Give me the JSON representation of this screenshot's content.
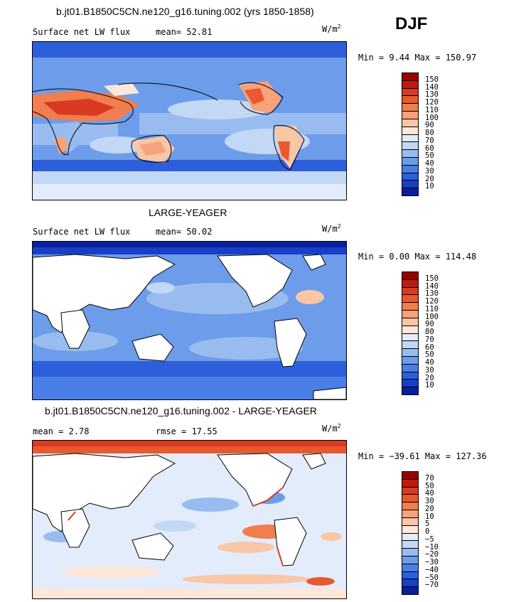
{
  "season": "DJF",
  "panels": [
    {
      "title": "b.jt01.B1850C5CN.ne120_g16.tuning.002 (yrs 1850-1858)",
      "left_label": "Surface net LW flux",
      "center_label": "mean=  52.81",
      "units": "W/m",
      "units_sup": "2",
      "minmax": "Min =   9.44 Max = 150.97",
      "land_masked": false,
      "field_mean": 52.81,
      "field_min": 9.44,
      "field_max": 150.97,
      "colorbar": {
        "labels": [
          "150",
          "140",
          "130",
          "120",
          "110",
          "100",
          "90",
          "80",
          "70",
          "60",
          "50",
          "40",
          "30",
          "20",
          "10"
        ],
        "colors": [
          "#990000",
          "#c0190f",
          "#d93a22",
          "#e8592f",
          "#f07e4e",
          "#f6a27a",
          "#f9c6a6",
          "#fde7d8",
          "#e3ecfb",
          "#c3d8f5",
          "#99bcf0",
          "#6d9cea",
          "#4a7fe5",
          "#2e5fdb",
          "#1740c6",
          "#0a1f9c"
        ]
      }
    },
    {
      "title": "LARGE-YEAGER",
      "left_label": "Surface net LW flux",
      "center_label": "mean=  50.02",
      "units": "W/m",
      "units_sup": "2",
      "minmax": "Min =   0.00 Max = 114.48",
      "land_masked": true,
      "field_mean": 50.02,
      "field_min": 0.0,
      "field_max": 114.48,
      "colorbar": {
        "labels": [
          "150",
          "140",
          "130",
          "120",
          "110",
          "100",
          "90",
          "80",
          "70",
          "60",
          "50",
          "40",
          "30",
          "20",
          "10"
        ],
        "colors": [
          "#990000",
          "#c0190f",
          "#d93a22",
          "#e8592f",
          "#f07e4e",
          "#f6a27a",
          "#f9c6a6",
          "#fde7d8",
          "#e3ecfb",
          "#c3d8f5",
          "#99bcf0",
          "#6d9cea",
          "#4a7fe5",
          "#2e5fdb",
          "#1740c6",
          "#0a1f9c"
        ]
      }
    },
    {
      "title": "b.jt01.B1850C5CN.ne120_g16.tuning.002 - LARGE-YEAGER",
      "left_label": "mean =    2.78",
      "center_label": "rmse =   17.55",
      "units": "W/m",
      "units_sup": "2",
      "minmax": "Min = −39.61 Max = 127.36",
      "land_masked": true,
      "field_mean": 2.78,
      "field_rmse": 17.55,
      "field_min": -39.61,
      "field_max": 127.36,
      "colorbar": {
        "labels": [
          "70",
          "50",
          "40",
          "30",
          "20",
          "10",
          "5",
          "0",
          "−5",
          "−10",
          "−20",
          "−30",
          "−40",
          "−50",
          "−70"
        ],
        "colors": [
          "#990000",
          "#c0190f",
          "#d93a22",
          "#e8592f",
          "#f07e4e",
          "#f6a27a",
          "#f9c6a6",
          "#fde7d8",
          "#e3ecfb",
          "#c3d8f5",
          "#99bcf0",
          "#6d9cea",
          "#4a7fe5",
          "#2e5fdb",
          "#1740c6",
          "#0a1f9c"
        ]
      }
    }
  ]
}
